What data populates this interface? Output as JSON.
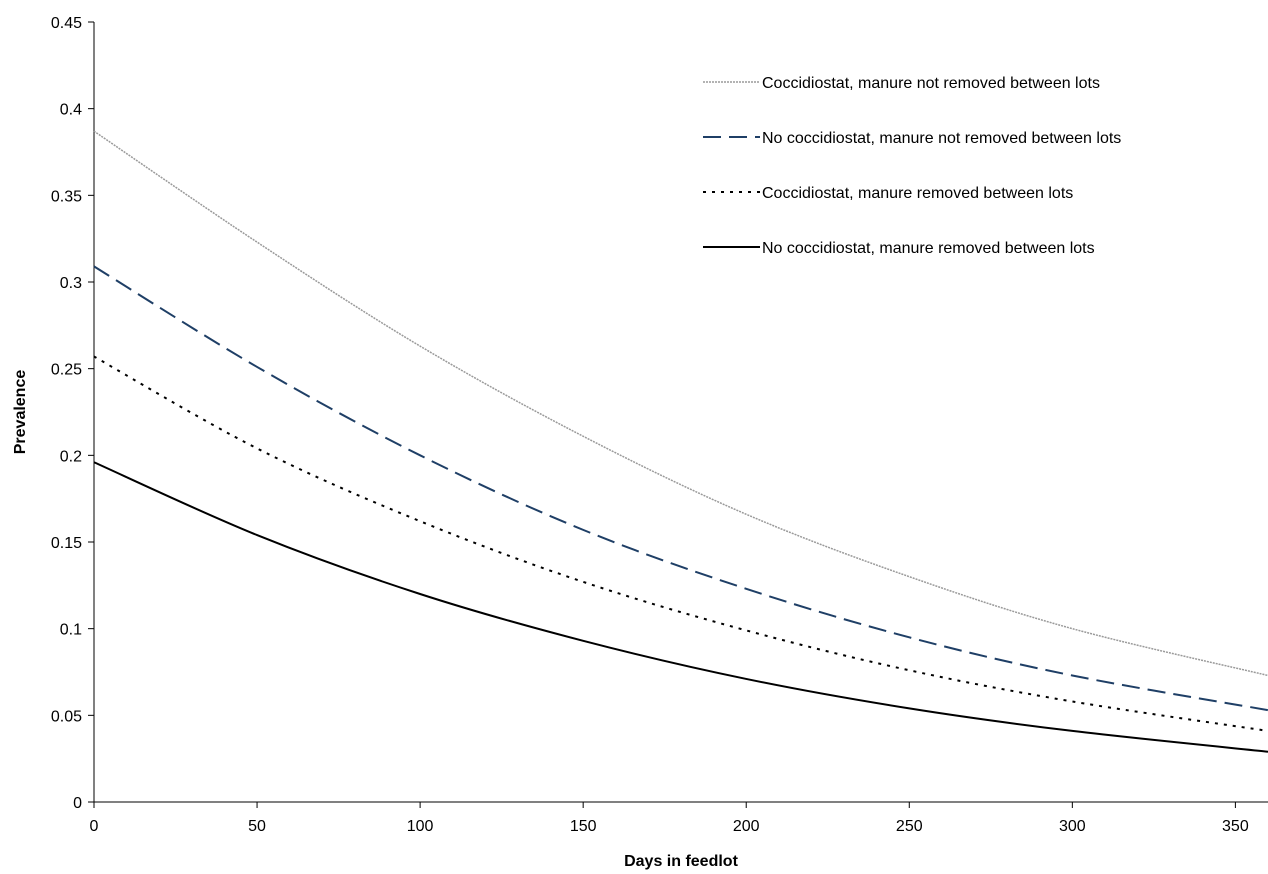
{
  "chart_data": {
    "type": "line",
    "title": "",
    "xlabel": "Days in feedlot",
    "ylabel": "Prevalence",
    "xlim": [
      0,
      360
    ],
    "ylim": [
      0,
      0.45
    ],
    "xticks": [
      0,
      50,
      100,
      150,
      200,
      250,
      300,
      350
    ],
    "xtick_labels": [
      "0",
      "50",
      "100",
      "150",
      "200",
      "250",
      "300",
      "350"
    ],
    "yticks": [
      0,
      0.05,
      0.1,
      0.15,
      0.2,
      0.25,
      0.3,
      0.35,
      0.4,
      0.45
    ],
    "ytick_labels": [
      "0",
      "0.05",
      "0.1",
      "0.15",
      "0.2",
      "0.25",
      "0.3",
      "0.35",
      "0.4",
      "0.45"
    ],
    "grid": false,
    "legend_position": "top-right",
    "x": [
      0,
      50,
      100,
      150,
      200,
      250,
      300,
      360
    ],
    "series": [
      {
        "name": "Coccidiostat, manure not removed between lots",
        "style": "dotted-thin",
        "color": "#9a9a9a",
        "values": [
          0.387,
          0.323,
          0.263,
          0.211,
          0.166,
          0.13,
          0.1,
          0.073
        ]
      },
      {
        "name": "No coccidiostat, manure not removed between lots",
        "style": "dashed",
        "color": "#1f3f66",
        "values": [
          0.309,
          0.251,
          0.2,
          0.157,
          0.123,
          0.095,
          0.073,
          0.053
        ]
      },
      {
        "name": "Coccidiostat, manure removed between lots",
        "style": "dotted",
        "color": "#000000",
        "values": [
          0.257,
          0.204,
          0.162,
          0.127,
          0.099,
          0.076,
          0.058,
          0.041
        ]
      },
      {
        "name": "No coccidiostat, manure removed between lots",
        "style": "solid",
        "color": "#000000",
        "values": [
          0.196,
          0.154,
          0.12,
          0.093,
          0.071,
          0.054,
          0.041,
          0.029
        ]
      }
    ]
  }
}
